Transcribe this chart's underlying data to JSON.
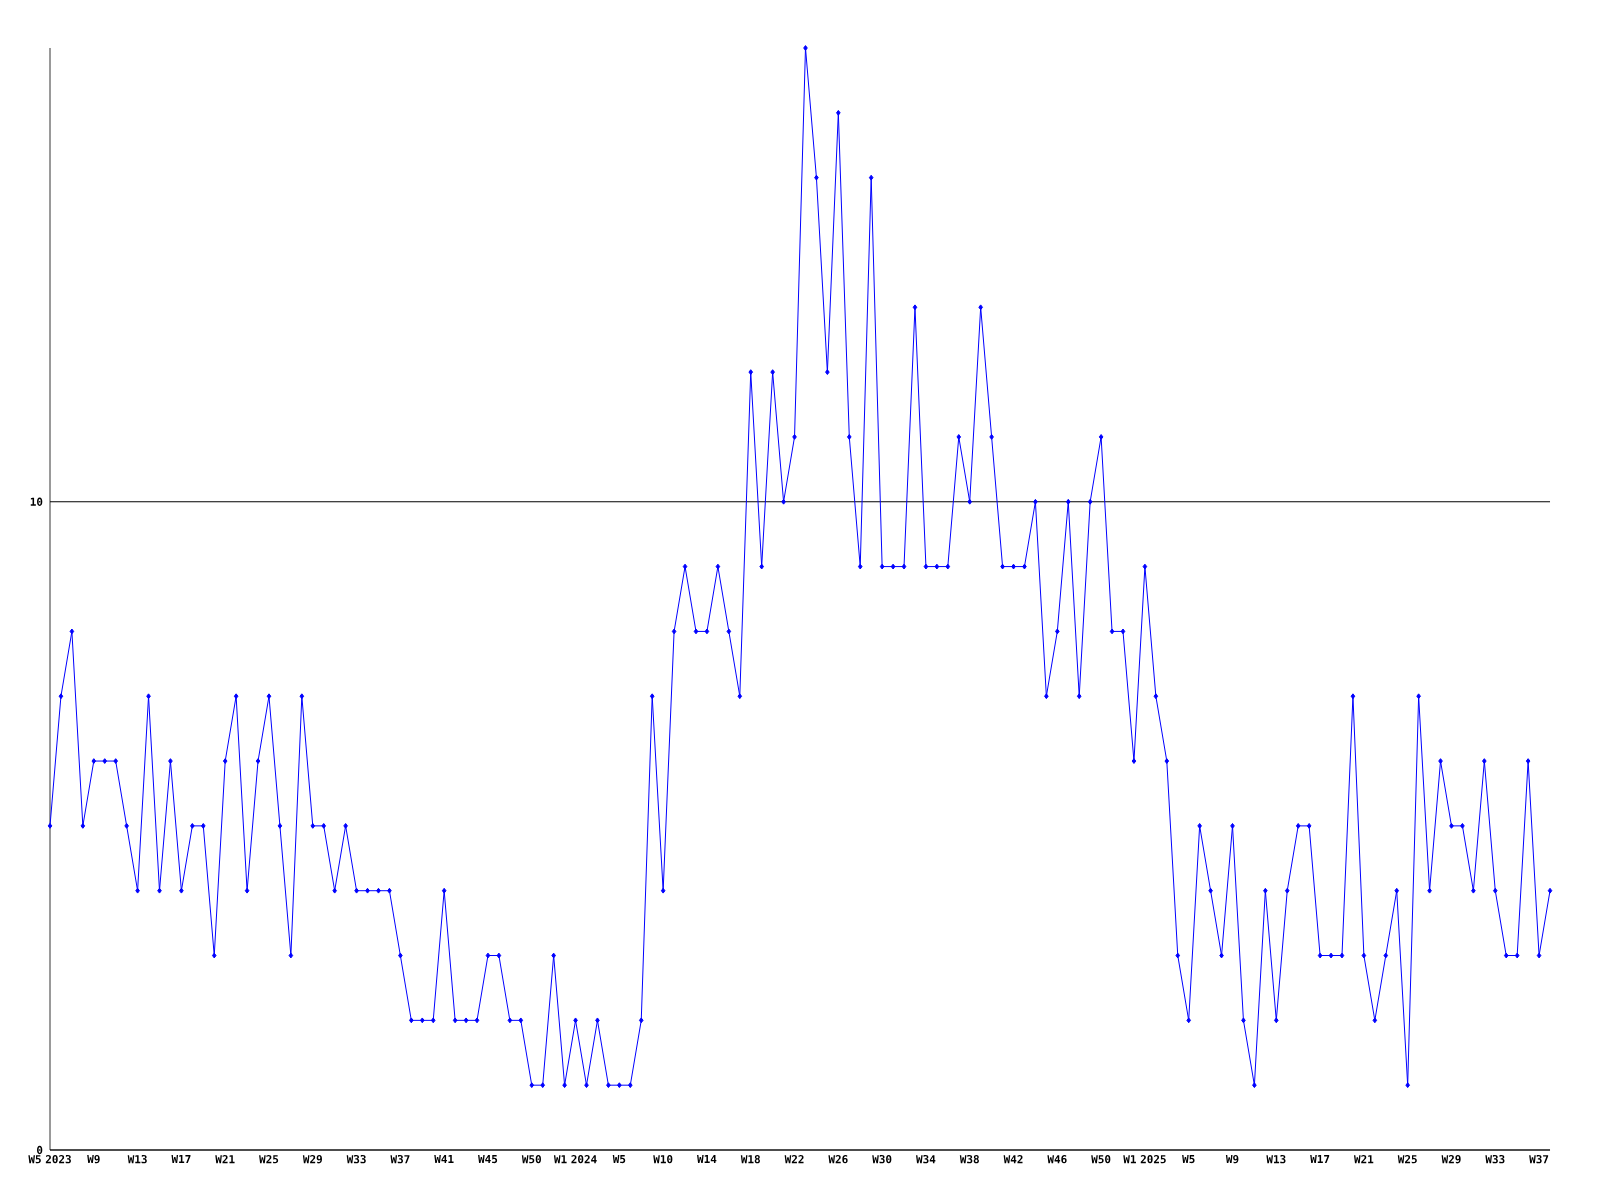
{
  "chart_data": {
    "type": "line",
    "categories": [
      "W5 2023",
      null,
      null,
      null,
      "W9",
      null,
      null,
      null,
      "W13",
      null,
      null,
      null,
      "W17",
      null,
      null,
      null,
      "W21",
      null,
      null,
      null,
      "W25",
      null,
      null,
      null,
      "W29",
      null,
      null,
      null,
      "W33",
      null,
      null,
      null,
      "W37",
      null,
      null,
      null,
      "W41",
      null,
      null,
      null,
      "W45",
      null,
      null,
      null,
      "W50",
      null,
      null,
      null,
      "W1 2024",
      null,
      null,
      null,
      "W5",
      null,
      null,
      null,
      "W10",
      null,
      null,
      null,
      "W14",
      null,
      null,
      null,
      "W18",
      null,
      null,
      null,
      "W22",
      null,
      null,
      null,
      "W26",
      null,
      null,
      null,
      "W30",
      null,
      null,
      null,
      "W34",
      null,
      null,
      null,
      "W38",
      null,
      null,
      null,
      "W42",
      null,
      null,
      null,
      "W46",
      null,
      null,
      null,
      "W50",
      null,
      null,
      null,
      "W1 2025",
      null,
      null,
      null,
      "W5",
      null,
      null,
      null,
      "W9",
      null,
      null,
      null,
      "W13",
      null,
      null,
      null,
      "W17",
      null,
      null,
      null,
      "W21",
      null,
      null,
      null,
      "W25",
      null,
      null,
      null,
      "W29",
      null,
      null,
      null,
      "W33",
      null,
      null,
      null,
      "W37",
      null
    ],
    "values": [
      5,
      7,
      8,
      5,
      6,
      6,
      6,
      5,
      4,
      7,
      4,
      6,
      4,
      5,
      5,
      3,
      6,
      7,
      4,
      6,
      7,
      5,
      3,
      7,
      5,
      5,
      4,
      5,
      4,
      4,
      4,
      4,
      3,
      2,
      2,
      2,
      4,
      2,
      2,
      2,
      3,
      3,
      2,
      2,
      1,
      1,
      3,
      1,
      2,
      1,
      2,
      1,
      1,
      1,
      2,
      7,
      4,
      8,
      9,
      8,
      8,
      9,
      8,
      7,
      12,
      9,
      12,
      10,
      11,
      17,
      15,
      12,
      16,
      11,
      9,
      15,
      9,
      9,
      9,
      13,
      9,
      9,
      9,
      11,
      10,
      13,
      11,
      9,
      9,
      9,
      10,
      7,
      8,
      10,
      7,
      10,
      11,
      8,
      8,
      6,
      9,
      7,
      6,
      3,
      2,
      5,
      4,
      3,
      5,
      2,
      1,
      4,
      2,
      4,
      5,
      5,
      3,
      3,
      3,
      7,
      3,
      2,
      3,
      4,
      1,
      7,
      4,
      6,
      5,
      5,
      4,
      6,
      4,
      3,
      3,
      6,
      3,
      4
    ],
    "color": "#0000ff",
    "marker": "diamond",
    "grid": "y",
    "ylim": [
      0,
      17
    ],
    "yticks": [
      0,
      10
    ]
  }
}
